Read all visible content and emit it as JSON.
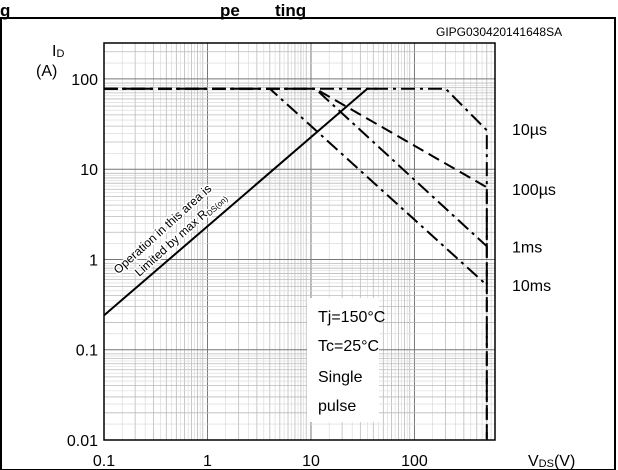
{
  "header": {
    "title_fragment": "g",
    "title_fragment_right": "pe",
    "title_fragment_right2": "ting",
    "code": "GIPG030420141648SA"
  },
  "chart_data": {
    "type": "line",
    "x_scale": "log",
    "y_scale": "log",
    "xlim": [
      0.1,
      600
    ],
    "ylim": [
      0.01,
      250
    ],
    "grid": true,
    "y_axis_label": {
      "main": "I",
      "sub": "D",
      "unit": "(A)"
    },
    "x_axis_label": {
      "main": "V",
      "sub": "DS",
      "unit": "(V)"
    },
    "x_ticks": [
      {
        "value": 0.1,
        "label": "0.1"
      },
      {
        "value": 1,
        "label": "1"
      },
      {
        "value": 10,
        "label": "10"
      },
      {
        "value": 100,
        "label": "100"
      }
    ],
    "y_ticks": [
      {
        "value": 0.01,
        "label": "0.01"
      },
      {
        "value": 0.1,
        "label": "0.1"
      },
      {
        "value": 1,
        "label": "1"
      },
      {
        "value": 10,
        "label": "10"
      },
      {
        "value": 100,
        "label": "100"
      }
    ],
    "series": [
      {
        "name": "10µs",
        "style": "dash-dot",
        "label_y": 28,
        "points": [
          [
            0.1,
            78
          ],
          [
            200,
            78
          ],
          [
            500,
            27
          ],
          [
            500,
            0.01
          ]
        ]
      },
      {
        "name": "100µs",
        "style": "dash",
        "label_y": 6,
        "points": [
          [
            0.1,
            78
          ],
          [
            11,
            78
          ],
          [
            500,
            6.3
          ],
          [
            500,
            0.01
          ]
        ]
      },
      {
        "name": "1ms",
        "style": "dash-dot",
        "label_y": 1.4,
        "points": [
          [
            0.1,
            78
          ],
          [
            11,
            78
          ],
          [
            500,
            1.4
          ]
        ]
      },
      {
        "name": "10ms",
        "style": "dash-dot",
        "label_y": 0.52,
        "points": [
          [
            0.1,
            78
          ],
          [
            4,
            78
          ],
          [
            500,
            0.52
          ]
        ]
      },
      {
        "name": "",
        "style": "solid",
        "points": [
          [
            0.1,
            0.24
          ],
          [
            35,
            78
          ],
          [
            44,
            78
          ]
        ]
      }
    ],
    "annotations": {
      "rds_line1": "Operation in this area is",
      "rds_line2_main": "Limited by max R",
      "rds_line2_sub": "DS(on)",
      "conditions": [
        "Tj=150°C",
        "Tc=25°C",
        "Single",
        "pulse"
      ]
    }
  }
}
